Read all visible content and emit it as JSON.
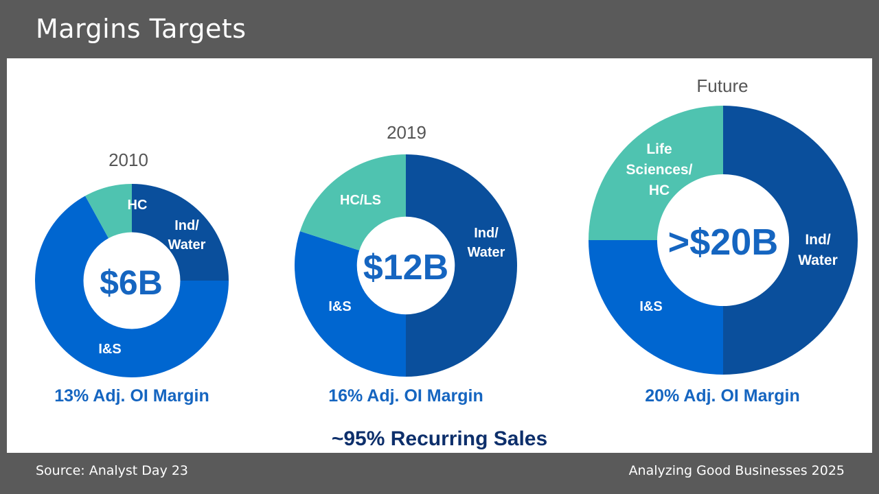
{
  "slide": {
    "title": "Margins Targets",
    "source": "Source: Analyst Day 23",
    "credit": "Analyzing Good Businesses 2025",
    "recurring_text": "~95% Recurring Sales"
  },
  "colors": {
    "ind_water": "#0a4f9c",
    "is": "#0066d0",
    "hc": "#4fc3b0",
    "accent_text": "#1565c0"
  },
  "chart_data": [
    {
      "type": "pie",
      "title": "2010",
      "center_label": "$6B",
      "margin_label": "13% Adj. OI Margin",
      "slices": [
        {
          "label": "Ind/\nWater",
          "value": 25
        },
        {
          "label": "I&S",
          "value": 67
        },
        {
          "label": "HC",
          "value": 8
        }
      ]
    },
    {
      "type": "pie",
      "title": "2019",
      "center_label": "$12B",
      "margin_label": "16% Adj. OI Margin",
      "slices": [
        {
          "label": "Ind/\nWater",
          "value": 50
        },
        {
          "label": "I&S",
          "value": 30
        },
        {
          "label": "HC/LS",
          "value": 20
        }
      ]
    },
    {
      "type": "pie",
      "title": "Future",
      "center_label": ">$20B",
      "margin_label": "20% Adj. OI Margin",
      "slices": [
        {
          "label": "Ind/\nWater",
          "value": 50
        },
        {
          "label": "I&S",
          "value": 25
        },
        {
          "label": "Life\nSciences/\nHC",
          "value": 25
        }
      ]
    }
  ]
}
